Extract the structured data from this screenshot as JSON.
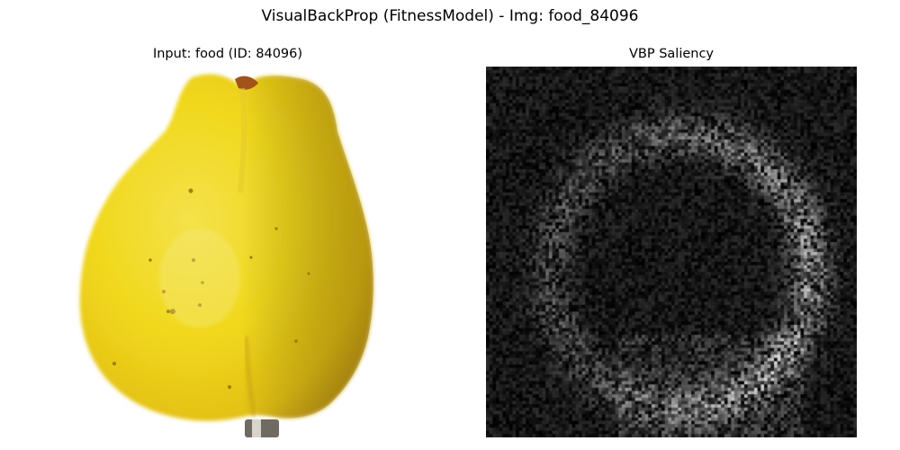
{
  "figure": {
    "title": "VisualBackProp (FitnessModel) - Img: food_84096"
  },
  "input_panel": {
    "title": "Input: food (ID: 84096)",
    "image_subject": "yellow quince fruit on white background"
  },
  "saliency_panel": {
    "title": "VBP Saliency",
    "colormap": "grayscale"
  },
  "colors": {
    "background": "#ffffff",
    "fruit_yellow": "#f2dc1c",
    "fruit_shadow": "#c49a10",
    "saliency_background": "#050505"
  }
}
